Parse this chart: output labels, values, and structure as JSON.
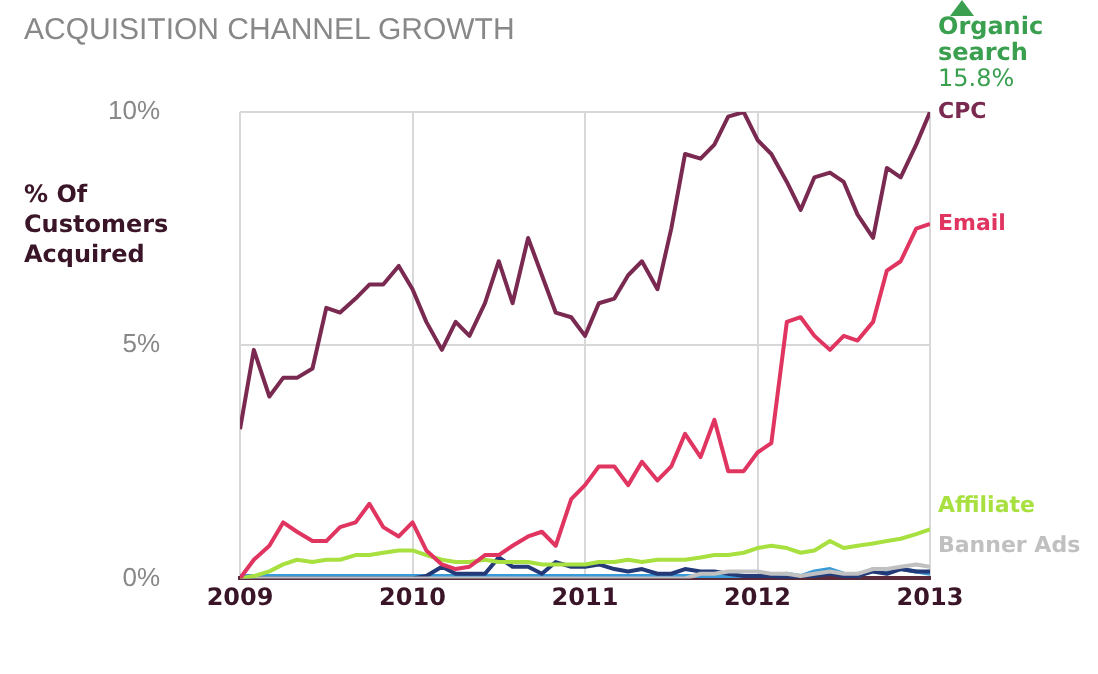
{
  "chart_data": {
    "type": "line",
    "title": "ACQUISITION CHANNEL GROWTH",
    "ylabel": "% Of Customers Acquired",
    "annotations": [
      "Organic search",
      "15.8%"
    ],
    "x": [
      2009,
      2009.08,
      2009.17,
      2009.25,
      2009.33,
      2009.42,
      2009.5,
      2009.58,
      2009.67,
      2009.75,
      2009.83,
      2009.92,
      2010,
      2010.08,
      2010.17,
      2010.25,
      2010.33,
      2010.42,
      2010.5,
      2010.58,
      2010.67,
      2010.75,
      2010.83,
      2010.92,
      2011,
      2011.08,
      2011.17,
      2011.25,
      2011.33,
      2011.42,
      2011.5,
      2011.58,
      2011.67,
      2011.75,
      2011.83,
      2011.92,
      2012,
      2012.08,
      2012.17,
      2012.25,
      2012.33,
      2012.42,
      2012.5,
      2012.58,
      2012.67,
      2012.75,
      2012.83,
      2012.92,
      2013
    ],
    "series": [
      {
        "name": "CPC",
        "color": "#7a2a50",
        "values": [
          3.2,
          4.9,
          3.9,
          4.3,
          4.3,
          4.5,
          5.8,
          5.7,
          6.0,
          6.3,
          6.3,
          6.7,
          6.2,
          5.5,
          4.9,
          5.5,
          5.2,
          5.9,
          6.8,
          5.9,
          7.3,
          6.5,
          5.7,
          5.6,
          5.2,
          5.9,
          6.0,
          6.5,
          6.8,
          6.2,
          7.5,
          9.1,
          9.0,
          9.3,
          9.9,
          10.0,
          9.4,
          9.1,
          8.5,
          7.9,
          8.6,
          8.7,
          8.5,
          7.8,
          7.3,
          8.8,
          8.6,
          9.3,
          10.0
        ]
      },
      {
        "name": "Email",
        "color": "#e03560",
        "values": [
          0,
          0.4,
          0.7,
          1.2,
          1.0,
          0.8,
          0.8,
          1.1,
          1.2,
          1.6,
          1.1,
          0.9,
          1.2,
          0.6,
          0.3,
          0.2,
          0.25,
          0.5,
          0.5,
          0.7,
          0.9,
          1.0,
          0.7,
          1.7,
          2.0,
          2.4,
          2.4,
          2.0,
          2.5,
          2.1,
          2.4,
          3.1,
          2.6,
          3.4,
          2.3,
          2.3,
          2.7,
          2.9,
          5.5,
          5.6,
          5.2,
          4.9,
          5.2,
          5.1,
          5.5,
          6.6,
          6.8,
          7.5,
          7.6
        ]
      },
      {
        "name": "Affiliate",
        "color": "#a8e040",
        "values": [
          0,
          0.05,
          0.15,
          0.3,
          0.4,
          0.35,
          0.4,
          0.4,
          0.5,
          0.5,
          0.55,
          0.6,
          0.6,
          0.5,
          0.4,
          0.35,
          0.35,
          0.4,
          0.35,
          0.35,
          0.35,
          0.3,
          0.3,
          0.3,
          0.3,
          0.35,
          0.35,
          0.4,
          0.35,
          0.4,
          0.4,
          0.4,
          0.45,
          0.5,
          0.5,
          0.55,
          0.65,
          0.7,
          0.65,
          0.55,
          0.6,
          0.8,
          0.65,
          0.7,
          0.75,
          0.8,
          0.85,
          0.95,
          1.05
        ]
      },
      {
        "name": "Banner Ads",
        "color": "#c0c0c0",
        "values": [
          0,
          0,
          0,
          0,
          0,
          0,
          0,
          0,
          0,
          0,
          0,
          0,
          0,
          0,
          0,
          0,
          0,
          0,
          0,
          0,
          0,
          0,
          0,
          0,
          0,
          0,
          0,
          0,
          0,
          0,
          0,
          0,
          0.1,
          0.1,
          0.15,
          0.15,
          0.15,
          0.1,
          0.1,
          0.05,
          0.1,
          0.15,
          0.1,
          0.1,
          0.2,
          0.2,
          0.25,
          0.3,
          0.25
        ]
      },
      {
        "color": "#243a78",
        "values": [
          0,
          0,
          0,
          0,
          0,
          0,
          0,
          0,
          0,
          0,
          0,
          0,
          0,
          0.05,
          0.25,
          0.1,
          0.1,
          0.1,
          0.45,
          0.25,
          0.25,
          0.1,
          0.35,
          0.25,
          0.25,
          0.3,
          0.2,
          0.15,
          0.2,
          0.1,
          0.1,
          0.2,
          0.15,
          0.15,
          0.1,
          0.05,
          0.05,
          0.05,
          0,
          0.05,
          0.05,
          0.1,
          0.05,
          0.05,
          0.15,
          0.1,
          0.2,
          0.15,
          0.15
        ]
      },
      {
        "color": "#3a9ad8",
        "values": [
          0.05,
          0.05,
          0.05,
          0.05,
          0.05,
          0.05,
          0.05,
          0.05,
          0.05,
          0.05,
          0.05,
          0.05,
          0.05,
          0.05,
          0.05,
          0.05,
          0.05,
          0.05,
          0.05,
          0.05,
          0.05,
          0.05,
          0.05,
          0.05,
          0.05,
          0.05,
          0.05,
          0.05,
          0.05,
          0.05,
          0.05,
          0.05,
          0.05,
          0.05,
          0.05,
          0.05,
          0.05,
          0.05,
          0.1,
          0.05,
          0.15,
          0.2,
          0.1,
          0.05,
          0.2,
          0.15,
          0.2,
          0.15,
          0.1
        ]
      }
    ],
    "xlim": [
      2009,
      2013
    ],
    "xticks": [
      2009,
      2010,
      2011,
      2012,
      2013
    ],
    "ylim": [
      0,
      10
    ],
    "yticks": [
      {
        "value": 0,
        "label": "0%"
      },
      {
        "value": 5,
        "label": "5%"
      },
      {
        "value": 10,
        "label": "10%"
      }
    ],
    "grid": true,
    "legend": false,
    "marker": "none",
    "line_style": "solid"
  }
}
